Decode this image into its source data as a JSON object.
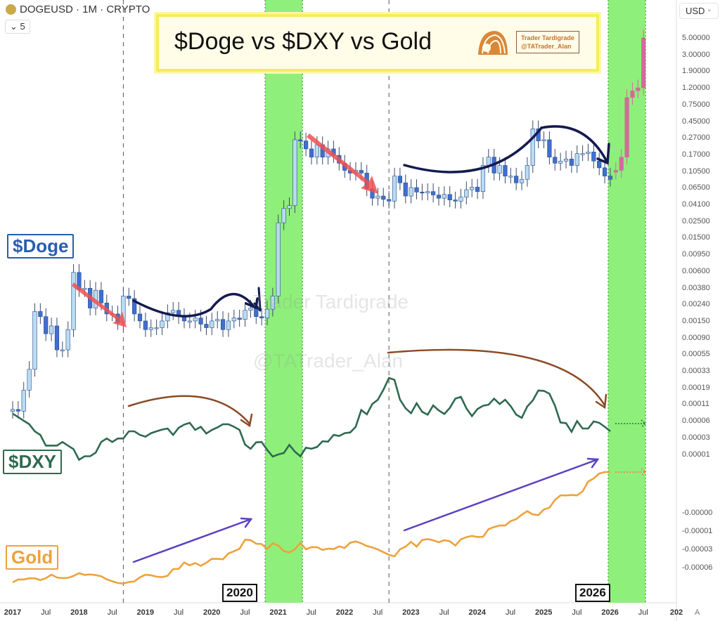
{
  "header": {
    "symbol": "DOGEUSD · 1M · CRYPTO",
    "interval_value": "5",
    "currency": "USD",
    "auto_label": "A"
  },
  "title": {
    "text": "$Doge vs $DXY vs Gold",
    "brand_line1": "Trader Tardigrade",
    "brand_line2": "@TATrader_Alan"
  },
  "watermark": {
    "line1": "Trader Tardigrade",
    "line2": "@TATrader_Alan"
  },
  "labels": {
    "doge": "$Doge",
    "dxy": "$DXY",
    "gold": "Gold",
    "year_a": "2020",
    "year_b": "2026"
  },
  "colors": {
    "doge_label": "#2a5db0",
    "dxy": "#2f6a50",
    "gold": "#eea23c",
    "green_band": "#8ef07a",
    "up_candle": "#b8dcf2",
    "down_candle": "#3f6fd0",
    "projection": "#d46a9c",
    "red_arrow": "#f05050",
    "navy": "#141a4e",
    "brown": "#8a4a24",
    "purple": "#5b40c0"
  },
  "chart_data": {
    "type": "line",
    "title": "$Doge vs $DXY vs Gold",
    "y_axis_labels": [
      "5.00000",
      "3.00000",
      "1.90000",
      "1.20000",
      "0.75000",
      "0.45000",
      "0.27000",
      "0.17000",
      "0.10500",
      "0.06500",
      "0.04100",
      "0.02500",
      "0.01500",
      "0.00950",
      "0.00600",
      "0.00380",
      "0.00240",
      "0.00150",
      "0.00090",
      "0.00055",
      "0.00033",
      "0.00019",
      "0.00011",
      "0.00006",
      "0.00003",
      "0.00001",
      "-0.00000",
      "-0.00001",
      "-0.00003",
      "-0.00006"
    ],
    "x_axis_labels": [
      "2017",
      "Jul",
      "2018",
      "Jul",
      "2019",
      "Jul",
      "2020",
      "Jul",
      "2021",
      "Jul",
      "2022",
      "Jul",
      "2023",
      "Jul",
      "2024",
      "Jul",
      "2025",
      "Jul",
      "2026",
      "Jul",
      "202"
    ],
    "start": "2017-01",
    "interval": "1M",
    "highlight_bands": [
      [
        "2020-11",
        "2021-05"
      ],
      [
        "2026-01",
        "2026-07"
      ]
    ],
    "dashed_lines": [
      "2018-09",
      "2022-09"
    ],
    "series": [
      {
        "name": "DOGEUSD",
        "kind": "candles",
        "scale": "log",
        "closes": [
          0.00022,
          0.00021,
          0.00037,
          0.00065,
          0.0031,
          0.0027,
          0.0017,
          0.0021,
          0.0011,
          0.0011,
          0.0019,
          0.0089,
          0.0056,
          0.0058,
          0.0034,
          0.0055,
          0.0039,
          0.0029,
          0.0029,
          0.0023,
          0.0047,
          0.0044,
          0.0029,
          0.0024,
          0.0019,
          0.002,
          0.002,
          0.0024,
          0.003,
          0.0032,
          0.0027,
          0.0024,
          0.0024,
          0.0026,
          0.0022,
          0.002,
          0.0024,
          0.0025,
          0.0019,
          0.0024,
          0.0026,
          0.0025,
          0.0032,
          0.0034,
          0.0027,
          0.0026,
          0.0033,
          0.0047,
          0.034,
          0.05,
          0.054,
          0.32,
          0.31,
          0.25,
          0.2,
          0.28,
          0.2,
          0.25,
          0.21,
          0.17,
          0.14,
          0.13,
          0.14,
          0.13,
          0.085,
          0.066,
          0.07,
          0.064,
          0.061,
          0.12,
          0.1,
          0.07,
          0.088,
          0.078,
          0.076,
          0.079,
          0.072,
          0.066,
          0.073,
          0.063,
          0.061,
          0.068,
          0.083,
          0.089,
          0.079,
          0.16,
          0.2,
          0.13,
          0.16,
          0.12,
          0.12,
          0.1,
          0.11,
          0.16,
          0.43,
          0.31,
          0.32,
          0.2,
          0.17,
          0.18,
          0.19,
          0.16,
          0.22,
          0.22,
          0.23,
          0.18,
          0.15,
          0.12,
          0.11
        ]
      },
      {
        "name": "DOGE projection",
        "kind": "candles",
        "scale": "log",
        "start": "2026-02",
        "closes": [
          0.14,
          0.2,
          1.0,
          1.2,
          1.3,
          5.0
        ]
      },
      {
        "name": "DXY",
        "kind": "line",
        "values": [
          102,
          101,
          100,
          99,
          97,
          96,
          93,
          93,
          93,
          94,
          93,
          92,
          89,
          90,
          90,
          91,
          94,
          95,
          94,
          95,
          95,
          97,
          97,
          96,
          95.5,
          96.5,
          97,
          97.5,
          97.8,
          96,
          98,
          98.9,
          99.4,
          97.4,
          98.3,
          96.4,
          97.4,
          98.1,
          99,
          99,
          98.3,
          97.4,
          93.3,
          92.1,
          93.9,
          94,
          91.8,
          89.9,
          90.5,
          90.9,
          93.2,
          91.3,
          90,
          92.4,
          92.1,
          92.6,
          94.2,
          94.1,
          96,
          95.7,
          96.5,
          96.7,
          98.3,
          103,
          101.8,
          104.7,
          105.9,
          108.7,
          112,
          111.5,
          105.9,
          103.5,
          102.1,
          104.9,
          102.5,
          101.7,
          104.3,
          102.9,
          101.9,
          103.6,
          106.2,
          106.7,
          103.5,
          101.3,
          103.3,
          104.2,
          104.5,
          106.2,
          104.7,
          105.9,
          104.1,
          101.7,
          100.8,
          104,
          105.7,
          108.5,
          108.4,
          107.6,
          104.2,
          99.5,
          99.3,
          96.9,
          99.9,
          97.8,
          97.8,
          99.8,
          99.4,
          98.3,
          97
        ]
      },
      {
        "name": "Gold",
        "kind": "line",
        "scale": "log",
        "values": [
          1210,
          1250,
          1249,
          1268,
          1268,
          1242,
          1269,
          1322,
          1280,
          1271,
          1275,
          1303,
          1345,
          1318,
          1325,
          1315,
          1298,
          1252,
          1224,
          1201,
          1192,
          1215,
          1222,
          1282,
          1321,
          1313,
          1292,
          1284,
          1305,
          1409,
          1413,
          1520,
          1472,
          1511,
          1464,
          1517,
          1587,
          1585,
          1577,
          1686,
          1730,
          1781,
          1975,
          1967,
          1886,
          1879,
          1776,
          1898,
          1847,
          1734,
          1707,
          1769,
          1906,
          1770,
          1814,
          1813,
          1757,
          1783,
          1774,
          1829,
          1796,
          1908,
          1937,
          1896,
          1837,
          1807,
          1766,
          1711,
          1660,
          1633,
          1768,
          1824,
          1928,
          1826,
          1969,
          1990,
          1962,
          1919,
          1965,
          1940,
          1849,
          1983,
          2036,
          2063,
          2039,
          2044,
          2230,
          2286,
          2327,
          2326,
          2447,
          2503,
          2634,
          2743,
          2643,
          2624,
          2798,
          2858,
          3123,
          3288,
          3289,
          3303,
          3290,
          3448,
          3858,
          4000,
          4230,
          4300,
          4300
        ]
      }
    ]
  }
}
